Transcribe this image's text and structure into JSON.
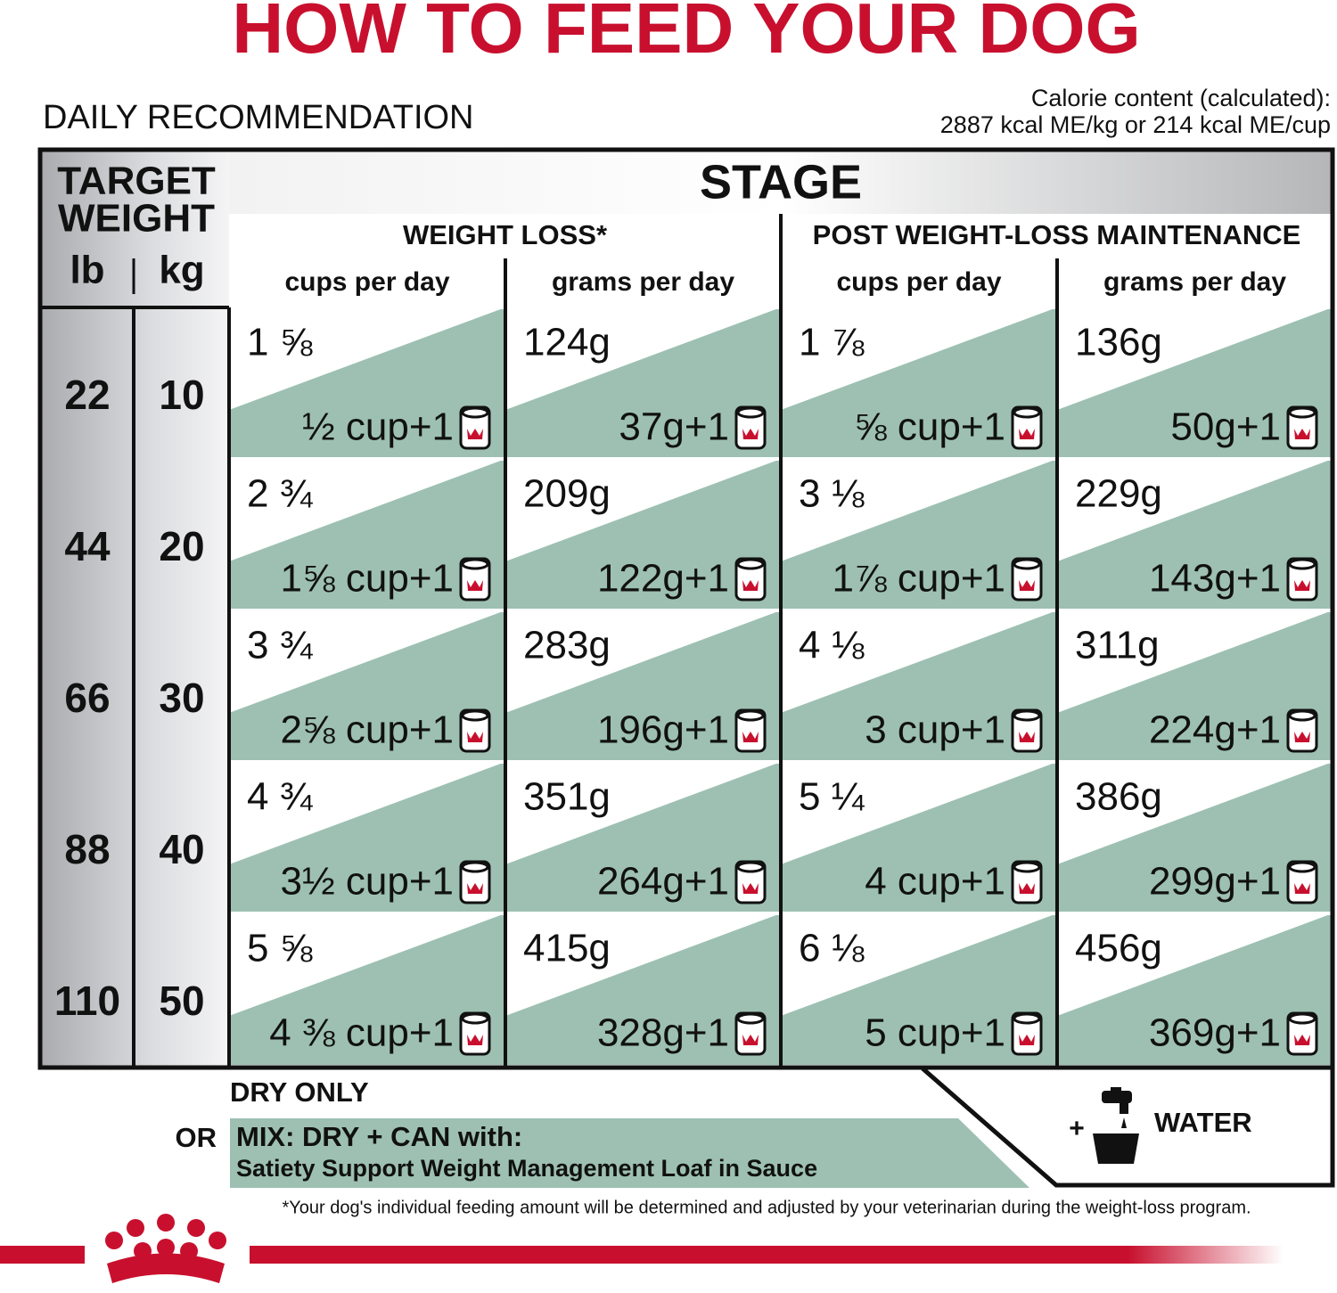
{
  "title": "HOW TO FEED YOUR DOG",
  "subtitle": "DAILY RECOMMENDATION",
  "calorie": [
    "Calorie content (calculated):",
    "2887 kcal ME/kg or 214 kcal ME/cup"
  ],
  "header": {
    "target_weight": [
      "TARGET",
      "WEIGHT"
    ],
    "lb": "lb",
    "kg": "kg",
    "stage": "STAGE",
    "groups": [
      "WEIGHT LOSS*",
      "POST WEIGHT-LOSS MAINTENANCE"
    ],
    "columns": [
      "cups per day",
      "grams per day",
      "cups per day",
      "grams per day"
    ]
  },
  "rows": [
    {
      "lb": "22",
      "kg": "10",
      "cells": [
        {
          "dry": "1 ⅝",
          "mix": "½ cup+1"
        },
        {
          "dry": "124g",
          "mix": "37g+1"
        },
        {
          "dry": "1 ⅞",
          "mix": "⅝ cup+1"
        },
        {
          "dry": "136g",
          "mix": "50g+1"
        }
      ]
    },
    {
      "lb": "44",
      "kg": "20",
      "cells": [
        {
          "dry": "2 ¾",
          "mix": "1⅝ cup+1"
        },
        {
          "dry": "209g",
          "mix": "122g+1"
        },
        {
          "dry": "3 ⅛",
          "mix": "1⅞ cup+1"
        },
        {
          "dry": "229g",
          "mix": "143g+1"
        }
      ]
    },
    {
      "lb": "66",
      "kg": "30",
      "cells": [
        {
          "dry": "3 ¾",
          "mix": "2⅝ cup+1"
        },
        {
          "dry": "283g",
          "mix": "196g+1"
        },
        {
          "dry": "4 ⅛",
          "mix": "3 cup+1"
        },
        {
          "dry": "311g",
          "mix": "224g+1"
        }
      ]
    },
    {
      "lb": "88",
      "kg": "40",
      "cells": [
        {
          "dry": "4 ¾",
          "mix": "3½ cup+1"
        },
        {
          "dry": "351g",
          "mix": "264g+1"
        },
        {
          "dry": "5 ¼",
          "mix": "4 cup+1"
        },
        {
          "dry": "386g",
          "mix": "299g+1"
        }
      ]
    },
    {
      "lb": "110",
      "kg": "50",
      "cells": [
        {
          "dry": "5 ⅝",
          "mix": "4 ⅜ cup+1"
        },
        {
          "dry": "415g",
          "mix": "328g+1"
        },
        {
          "dry": "6 ⅛",
          "mix": "5 cup+1"
        },
        {
          "dry": "456g",
          "mix": "369g+1"
        }
      ]
    }
  ],
  "legend": {
    "dry_only": "DRY ONLY",
    "or": "OR",
    "mix_title": "MIX: DRY + CAN with:",
    "mix_product": "Satiety Support Weight Management Loaf in Sauce",
    "plus": "+",
    "water": "WATER"
  },
  "footnote": "*Your dog's individual feeding amount will be determined and adjusted by your veterinarian during the weight-loss program."
}
